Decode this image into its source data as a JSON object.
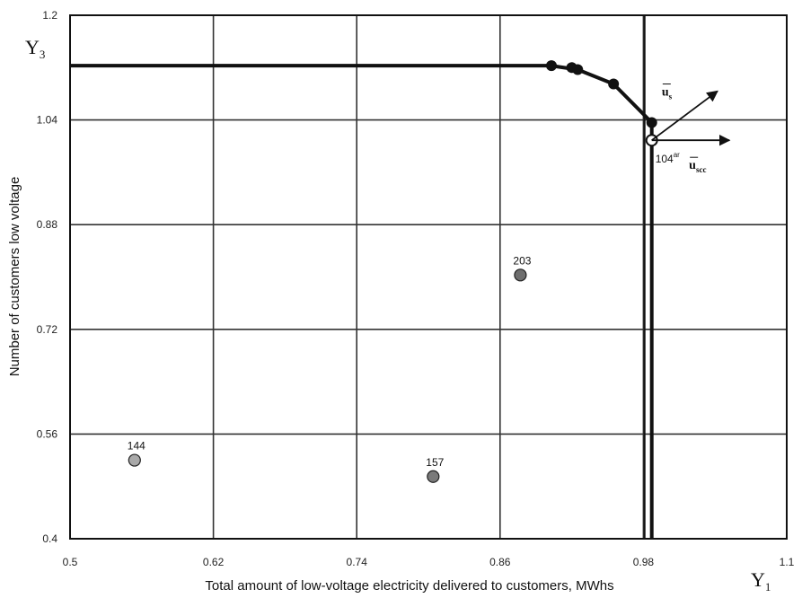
{
  "chart_data": {
    "type": "scatter",
    "xlabel": "Total amount of low-voltage electricity delivered to customers, MWhs",
    "ylabel": "Number of customers low voltage",
    "x_var": {
      "main": "Y",
      "sub": "1"
    },
    "y_var": {
      "main": "Y",
      "sub": "3"
    },
    "xlim": [
      0.5,
      1.1
    ],
    "ylim": [
      0.4,
      1.2
    ],
    "x_ticks": [
      "0.5",
      "0.62",
      "0.74",
      "0.86",
      "0.98",
      "1.1"
    ],
    "y_ticks": [
      "0.4",
      "0.56",
      "0.72",
      "0.88",
      "1.04",
      "1.2"
    ],
    "grid": true,
    "frontier": {
      "points": [
        {
          "x": 0.5,
          "y": 1.123
        },
        {
          "x": 0.9,
          "y": 1.123
        },
        {
          "x": 0.903,
          "y": 1.123
        },
        {
          "x": 0.91,
          "y": 1.121
        },
        {
          "x": 0.925,
          "y": 1.117
        },
        {
          "x": 0.955,
          "y": 1.095
        },
        {
          "x": 0.987,
          "y": 1.036
        },
        {
          "x": 0.987,
          "y": 0.4
        }
      ],
      "markers": [
        {
          "x": 0.903,
          "y": 1.123
        },
        {
          "x": 0.92,
          "y": 1.12
        },
        {
          "x": 0.925,
          "y": 1.117
        },
        {
          "x": 0.955,
          "y": 1.095
        },
        {
          "x": 0.987,
          "y": 1.036
        }
      ]
    },
    "vertical_line_x": 0.981,
    "projection": {
      "x": 0.987,
      "y": 1.009,
      "label": "104",
      "label_sup": "ar"
    },
    "points": [
      {
        "label": "203",
        "x": 0.877,
        "y": 0.803
      },
      {
        "label": "157",
        "x": 0.804,
        "y": 0.495
      },
      {
        "label": "144",
        "x": 0.554,
        "y": 0.52
      }
    ],
    "vectors": [
      {
        "main": "u",
        "sub": "s",
        "dx": 0.055,
        "dy": 0.075
      },
      {
        "main": "u",
        "sub": "scc",
        "dx": 0.065,
        "dy": 0.0
      }
    ]
  }
}
